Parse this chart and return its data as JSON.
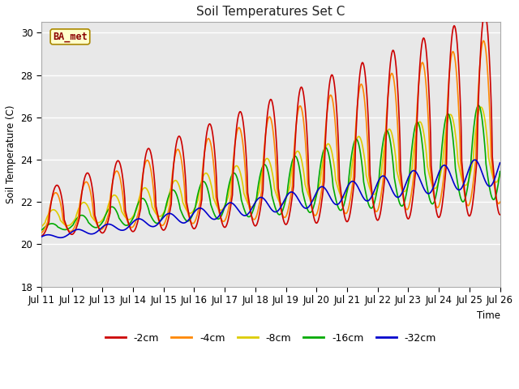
{
  "title": "Soil Temperatures Set C",
  "xlabel": "Time",
  "ylabel": "Soil Temperature (C)",
  "ylim": [
    18,
    30.5
  ],
  "xlim": [
    0,
    360
  ],
  "annotation": "BA_met",
  "fig_bg": "#ffffff",
  "plot_bg": "#e8e8e8",
  "grid_color": "#ffffff",
  "lines": {
    "-2cm": {
      "color": "#cc0000",
      "lw": 1.2
    },
    "-4cm": {
      "color": "#ff8800",
      "lw": 1.2
    },
    "-8cm": {
      "color": "#ddcc00",
      "lw": 1.2
    },
    "-16cm": {
      "color": "#00aa00",
      "lw": 1.2
    },
    "-32cm": {
      "color": "#0000cc",
      "lw": 1.2
    }
  },
  "x_tick_labels": [
    "Jul 11",
    "Jul 12",
    "Jul 13",
    "Jul 14",
    "Jul 15",
    "Jul 16",
    "Jul 17",
    "Jul 18",
    "Jul 19",
    "Jul 20",
    "Jul 21",
    "Jul 22",
    "Jul 23",
    "Jul 24",
    "Jul 25",
    "Jul 26"
  ],
  "x_tick_positions": [
    0,
    24,
    48,
    72,
    96,
    120,
    144,
    168,
    192,
    216,
    240,
    264,
    288,
    312,
    336,
    360
  ],
  "y_ticks": [
    18,
    20,
    22,
    24,
    26,
    28,
    30
  ]
}
